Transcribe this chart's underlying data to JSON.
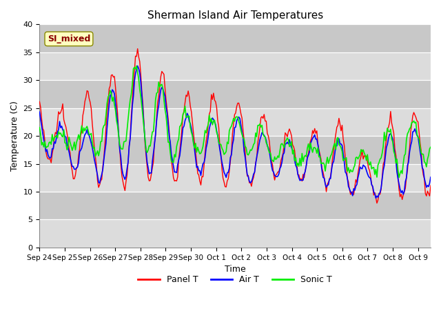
{
  "title": "Sherman Island Air Temperatures",
  "xlabel": "Time",
  "ylabel": "Temperature (C)",
  "ylim": [
    0,
    40
  ],
  "yticks": [
    0,
    5,
    10,
    15,
    20,
    25,
    30,
    35,
    40
  ],
  "xtick_labels": [
    "Sep 24",
    "Sep 25",
    "Sep 26",
    "Sep 27",
    "Sep 28",
    "Sep 29",
    "Sep 30",
    "Oct 1",
    "Oct 2",
    "Oct 3",
    "Oct 4",
    "Oct 5",
    "Oct 6",
    "Oct 7",
    "Oct 8",
    "Oct 9"
  ],
  "panel_color": "#FF0000",
  "air_color": "#0000FF",
  "sonic_color": "#00EE00",
  "bg_color_light": "#DCDCDC",
  "bg_color_dark": "#C8C8C8",
  "legend_label_panel": "Panel T",
  "legend_label_air": "Air T",
  "legend_label_sonic": "Sonic T",
  "annotation_text": "SI_mixed",
  "annotation_color": "#8B0000",
  "annotation_bg": "#FFFFC0",
  "figsize": [
    6.4,
    4.8
  ],
  "dpi": 100
}
